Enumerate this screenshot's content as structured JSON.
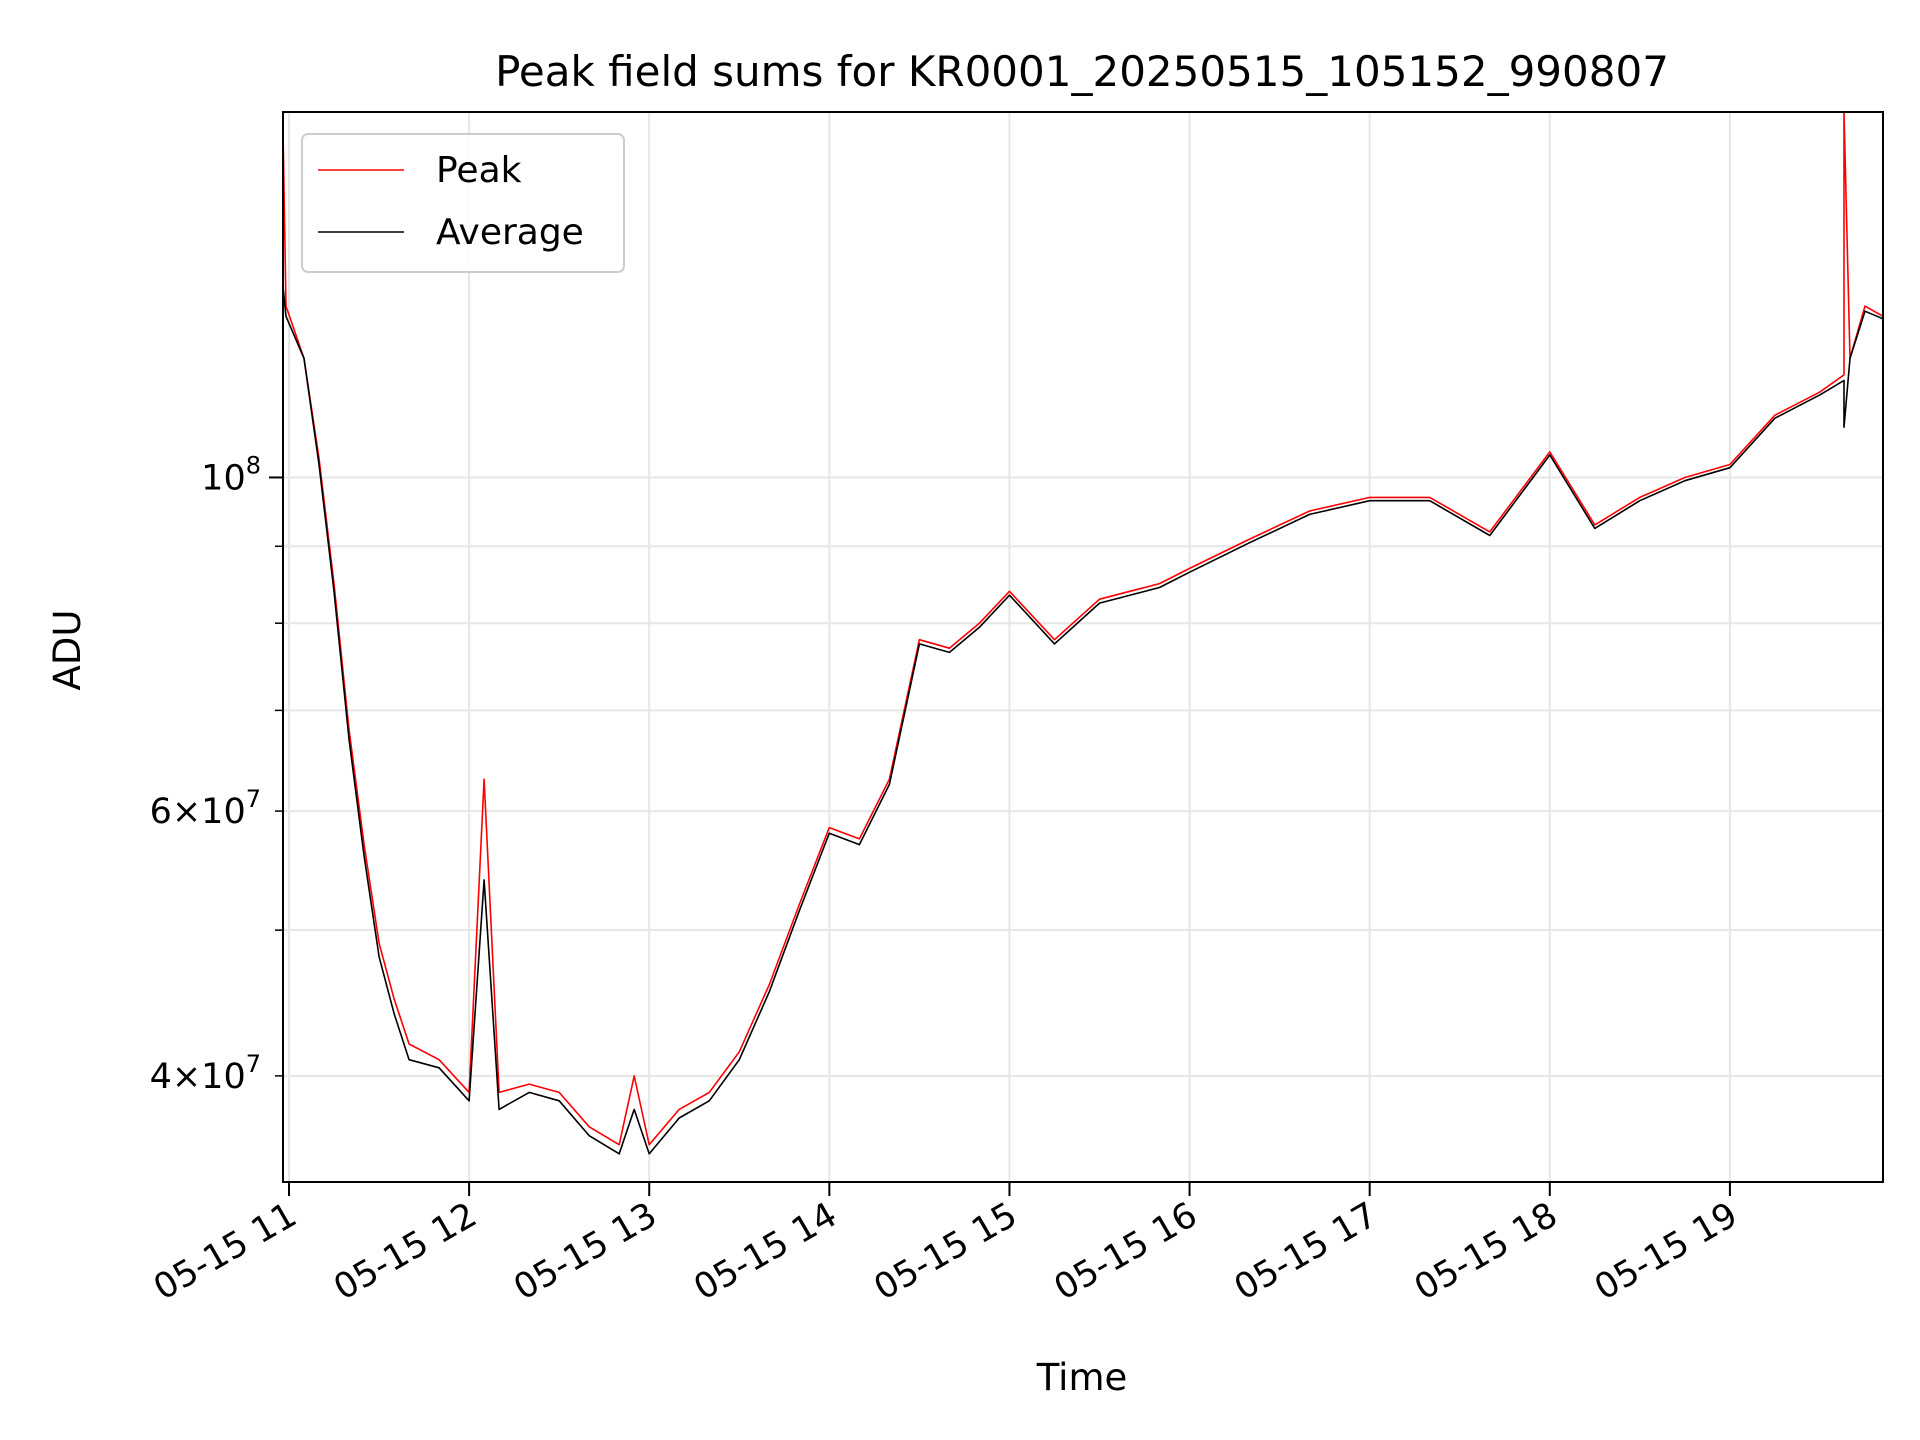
{
  "chart_data": {
    "type": "line",
    "title": "Peak field sums for KR0001_20250515_105152_990807",
    "xlabel": "Time",
    "ylabel": "ADU",
    "x_scale": "time",
    "y_scale": "log",
    "grid": true,
    "legend_position": "top-left",
    "x_range": [
      "2025-05-15 10:58",
      "2025-05-15 19:51"
    ],
    "y_range": [
      34000000,
      175000000
    ],
    "x_ticks": [
      {
        "time": "2025-05-15 11:00",
        "label": "05-15 11"
      },
      {
        "time": "2025-05-15 12:00",
        "label": "05-15 12"
      },
      {
        "time": "2025-05-15 13:00",
        "label": "05-15 13"
      },
      {
        "time": "2025-05-15 14:00",
        "label": "05-15 14"
      },
      {
        "time": "2025-05-15 15:00",
        "label": "05-15 15"
      },
      {
        "time": "2025-05-15 16:00",
        "label": "05-15 16"
      },
      {
        "time": "2025-05-15 17:00",
        "label": "05-15 17"
      },
      {
        "time": "2025-05-15 18:00",
        "label": "05-15 18"
      },
      {
        "time": "2025-05-15 19:00",
        "label": "05-15 19"
      }
    ],
    "y_major_ticks": [
      {
        "value": 100000000,
        "base": "10",
        "exp": "8"
      }
    ],
    "y_minor_ticks": [
      {
        "value": 40000000,
        "mant": "4",
        "base": "10",
        "exp": "7"
      },
      {
        "value": 60000000,
        "mant": "6",
        "base": "10",
        "exp": "7"
      }
    ],
    "y_minor_gridlines": [
      40000000,
      50000000,
      60000000,
      70000000,
      80000000,
      90000000,
      200000000
    ],
    "series": [
      {
        "name": "Peak",
        "color": "#ff0000",
        "points": [
          [
            "2025-05-15 10:58",
            145000000
          ],
          [
            "2025-05-15 10:58",
            170000000
          ],
          [
            "2025-05-15 10:59",
            130000000
          ],
          [
            "2025-05-15 11:05",
            120000000
          ],
          [
            "2025-05-15 11:10",
            103000000
          ],
          [
            "2025-05-15 11:15",
            85000000
          ],
          [
            "2025-05-15 11:20",
            68000000
          ],
          [
            "2025-05-15 11:25",
            57000000
          ],
          [
            "2025-05-15 11:30",
            49000000
          ],
          [
            "2025-05-15 11:35",
            45000000
          ],
          [
            "2025-05-15 11:40",
            42000000
          ],
          [
            "2025-05-15 11:50",
            41000000
          ],
          [
            "2025-05-15 12:00",
            39000000
          ],
          [
            "2025-05-15 12:05",
            63000000
          ],
          [
            "2025-05-15 12:10",
            39000000
          ],
          [
            "2025-05-15 12:20",
            39500000
          ],
          [
            "2025-05-15 12:30",
            39000000
          ],
          [
            "2025-05-15 12:40",
            37000000
          ],
          [
            "2025-05-15 12:50",
            36000000
          ],
          [
            "2025-05-15 12:55",
            40000000
          ],
          [
            "2025-05-15 13:00",
            36000000
          ],
          [
            "2025-05-15 13:10",
            38000000
          ],
          [
            "2025-05-15 13:20",
            39000000
          ],
          [
            "2025-05-15 13:30",
            41500000
          ],
          [
            "2025-05-15 13:40",
            46000000
          ],
          [
            "2025-05-15 13:50",
            52000000
          ],
          [
            "2025-05-15 14:00",
            58500000
          ],
          [
            "2025-05-15 14:10",
            57500000
          ],
          [
            "2025-05-15 14:20",
            63000000
          ],
          [
            "2025-05-15 14:30",
            78000000
          ],
          [
            "2025-05-15 14:40",
            77000000
          ],
          [
            "2025-05-15 14:50",
            80000000
          ],
          [
            "2025-05-15 15:00",
            84000000
          ],
          [
            "2025-05-15 15:15",
            78000000
          ],
          [
            "2025-05-15 15:30",
            83000000
          ],
          [
            "2025-05-15 15:50",
            85000000
          ],
          [
            "2025-05-15 16:00",
            87000000
          ],
          [
            "2025-05-15 16:20",
            91000000
          ],
          [
            "2025-05-15 16:40",
            95000000
          ],
          [
            "2025-05-15 17:00",
            97000000
          ],
          [
            "2025-05-15 17:20",
            97000000
          ],
          [
            "2025-05-15 17:40",
            92000000
          ],
          [
            "2025-05-15 18:00",
            104000000
          ],
          [
            "2025-05-15 18:15",
            93000000
          ],
          [
            "2025-05-15 18:30",
            97000000
          ],
          [
            "2025-05-15 18:45",
            100000000
          ],
          [
            "2025-05-15 19:00",
            102000000
          ],
          [
            "2025-05-15 19:15",
            110000000
          ],
          [
            "2025-05-15 19:30",
            114000000
          ],
          [
            "2025-05-15 19:38",
            117000000
          ],
          [
            "2025-05-15 19:38",
            175000000
          ],
          [
            "2025-05-15 19:40",
            120000000
          ],
          [
            "2025-05-15 19:45",
            130000000
          ],
          [
            "2025-05-15 19:51",
            128000000
          ]
        ]
      },
      {
        "name": "Average",
        "color": "#000000",
        "points": [
          [
            "2025-05-15 10:58",
            115000000
          ],
          [
            "2025-05-15 10:58",
            134000000
          ],
          [
            "2025-05-15 10:59",
            128000000
          ],
          [
            "2025-05-15 11:05",
            120000000
          ],
          [
            "2025-05-15 11:10",
            102000000
          ],
          [
            "2025-05-15 11:15",
            84000000
          ],
          [
            "2025-05-15 11:20",
            67000000
          ],
          [
            "2025-05-15 11:25",
            56000000
          ],
          [
            "2025-05-15 11:30",
            48000000
          ],
          [
            "2025-05-15 11:35",
            44000000
          ],
          [
            "2025-05-15 11:40",
            41000000
          ],
          [
            "2025-05-15 11:50",
            40500000
          ],
          [
            "2025-05-15 12:00",
            38500000
          ],
          [
            "2025-05-15 12:05",
            54000000
          ],
          [
            "2025-05-15 12:10",
            38000000
          ],
          [
            "2025-05-15 12:20",
            39000000
          ],
          [
            "2025-05-15 12:30",
            38500000
          ],
          [
            "2025-05-15 12:40",
            36500000
          ],
          [
            "2025-05-15 12:50",
            35500000
          ],
          [
            "2025-05-15 12:55",
            38000000
          ],
          [
            "2025-05-15 13:00",
            35500000
          ],
          [
            "2025-05-15 13:10",
            37500000
          ],
          [
            "2025-05-15 13:20",
            38500000
          ],
          [
            "2025-05-15 13:30",
            41000000
          ],
          [
            "2025-05-15 13:40",
            45500000
          ],
          [
            "2025-05-15 13:50",
            51500000
          ],
          [
            "2025-05-15 14:00",
            58000000
          ],
          [
            "2025-05-15 14:10",
            57000000
          ],
          [
            "2025-05-15 14:20",
            62500000
          ],
          [
            "2025-05-15 14:30",
            77500000
          ],
          [
            "2025-05-15 14:40",
            76500000
          ],
          [
            "2025-05-15 14:50",
            79500000
          ],
          [
            "2025-05-15 15:00",
            83500000
          ],
          [
            "2025-05-15 15:15",
            77500000
          ],
          [
            "2025-05-15 15:30",
            82500000
          ],
          [
            "2025-05-15 15:50",
            84500000
          ],
          [
            "2025-05-15 16:00",
            86500000
          ],
          [
            "2025-05-15 16:20",
            90500000
          ],
          [
            "2025-05-15 16:40",
            94500000
          ],
          [
            "2025-05-15 17:00",
            96500000
          ],
          [
            "2025-05-15 17:20",
            96500000
          ],
          [
            "2025-05-15 17:40",
            91500000
          ],
          [
            "2025-05-15 18:00",
            103500000
          ],
          [
            "2025-05-15 18:15",
            92500000
          ],
          [
            "2025-05-15 18:30",
            96500000
          ],
          [
            "2025-05-15 18:45",
            99500000
          ],
          [
            "2025-05-15 19:00",
            101500000
          ],
          [
            "2025-05-15 19:15",
            109500000
          ],
          [
            "2025-05-15 19:30",
            113500000
          ],
          [
            "2025-05-15 19:38",
            116000000
          ],
          [
            "2025-05-15 19:38",
            108000000
          ],
          [
            "2025-05-15 19:40",
            120000000
          ],
          [
            "2025-05-15 19:45",
            129000000
          ],
          [
            "2025-05-15 19:51",
            127500000
          ]
        ]
      }
    ]
  }
}
